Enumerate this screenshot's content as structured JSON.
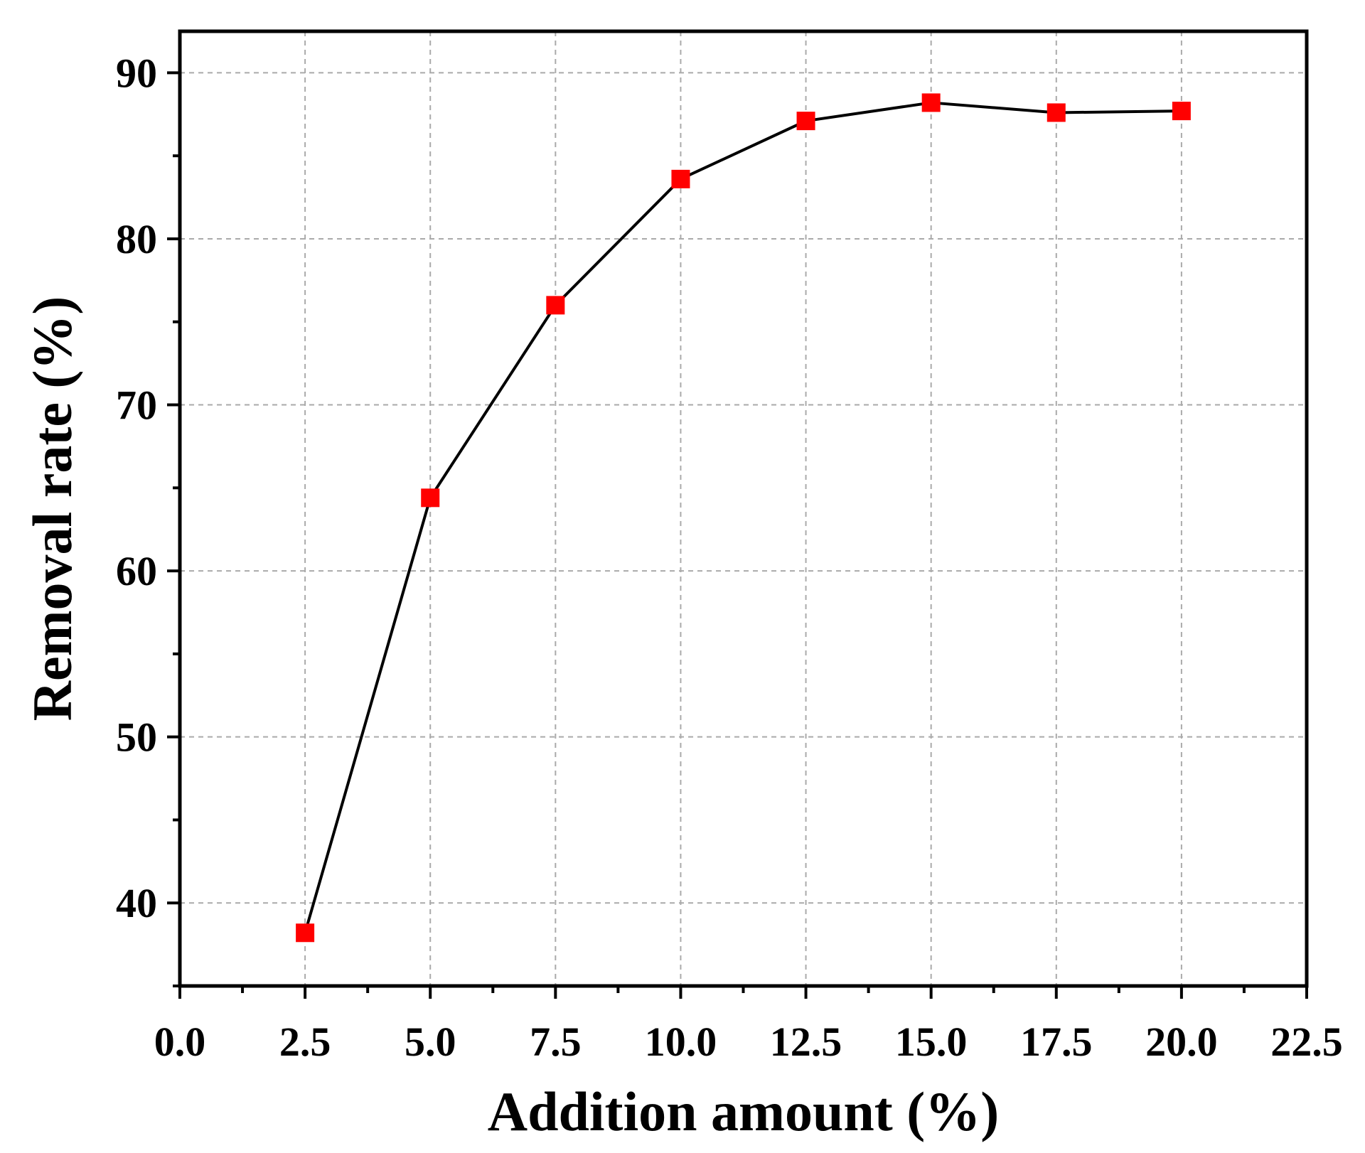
{
  "chart_data": {
    "type": "line",
    "title": "",
    "xlabel": "Addition amount (%)",
    "ylabel": "Removal rate (%)",
    "xlim": [
      0,
      22.5
    ],
    "ylim": [
      35,
      92.5
    ],
    "xticks": [
      "0.0",
      "2.5",
      "5.0",
      "7.5",
      "10.0",
      "12.5",
      "15.0",
      "17.5",
      "20.0",
      "22.5"
    ],
    "yticks": [
      "40",
      "50",
      "60",
      "70",
      "80",
      "90"
    ],
    "grid": true,
    "series": [
      {
        "marker": "square",
        "line_color": "#000000",
        "marker_color": "#ff0000",
        "x": [
          2.5,
          5.0,
          7.5,
          10.0,
          12.5,
          15.0,
          17.5,
          20.0
        ],
        "y": [
          38.2,
          64.4,
          76.0,
          83.6,
          87.1,
          88.2,
          87.6,
          87.7
        ]
      }
    ]
  }
}
